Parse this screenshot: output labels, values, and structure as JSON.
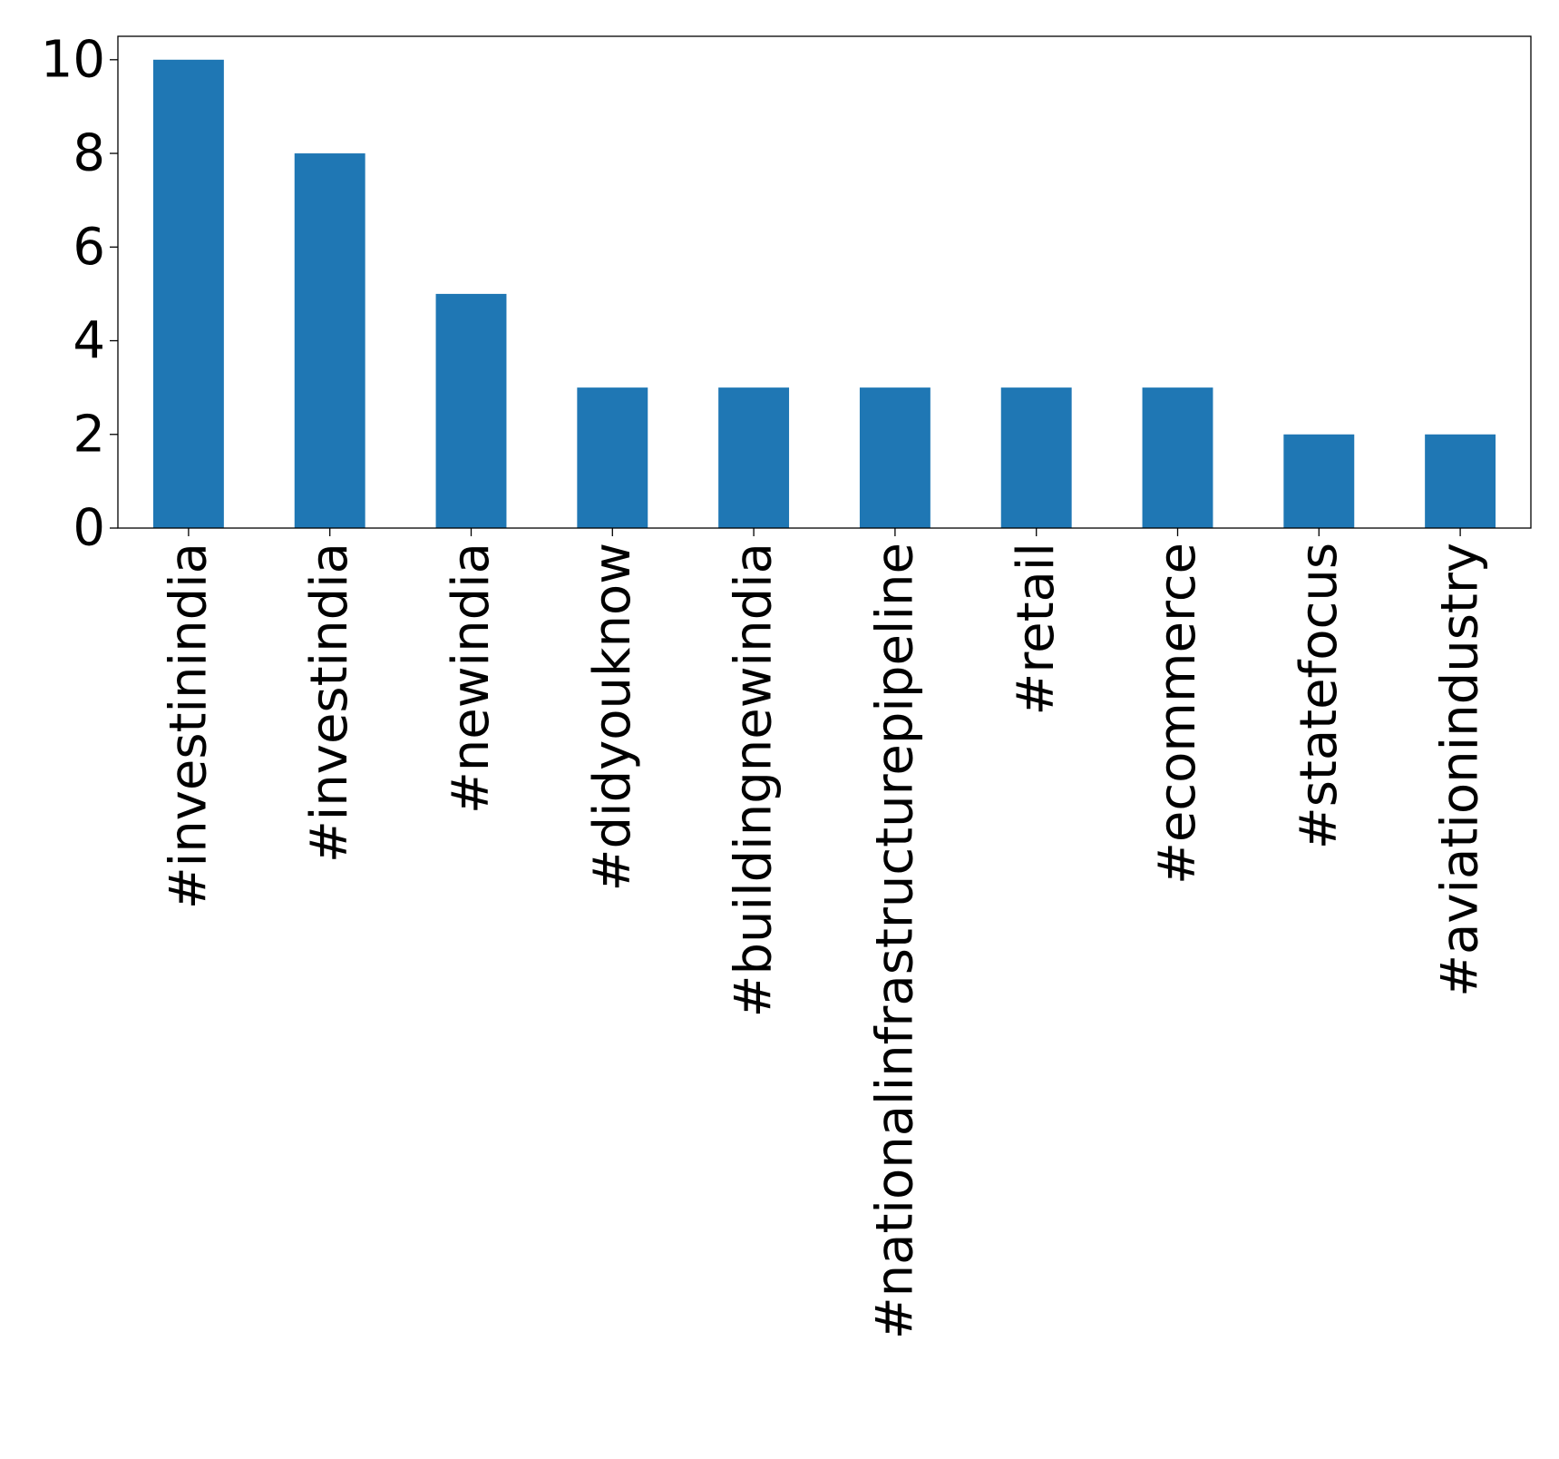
{
  "chart_data": {
    "type": "bar",
    "title": "",
    "xlabel": "",
    "ylabel": "",
    "categories": [
      "#investinindia",
      "#investindia",
      "#newindia",
      "#didyouknow",
      "#buildingnewindia",
      "#nationalinfrastructurepipeline",
      "#retail",
      "#ecommerce",
      "#statefocus",
      "#aviationindustry"
    ],
    "values": [
      10,
      8,
      5,
      3,
      3,
      3,
      3,
      3,
      2,
      2
    ],
    "ylim": [
      0,
      10.5
    ],
    "yticks": [
      "0",
      "2",
      "4",
      "6",
      "8",
      "10"
    ],
    "bar_color": "#1f77b4",
    "grid": false,
    "legend": "none"
  }
}
